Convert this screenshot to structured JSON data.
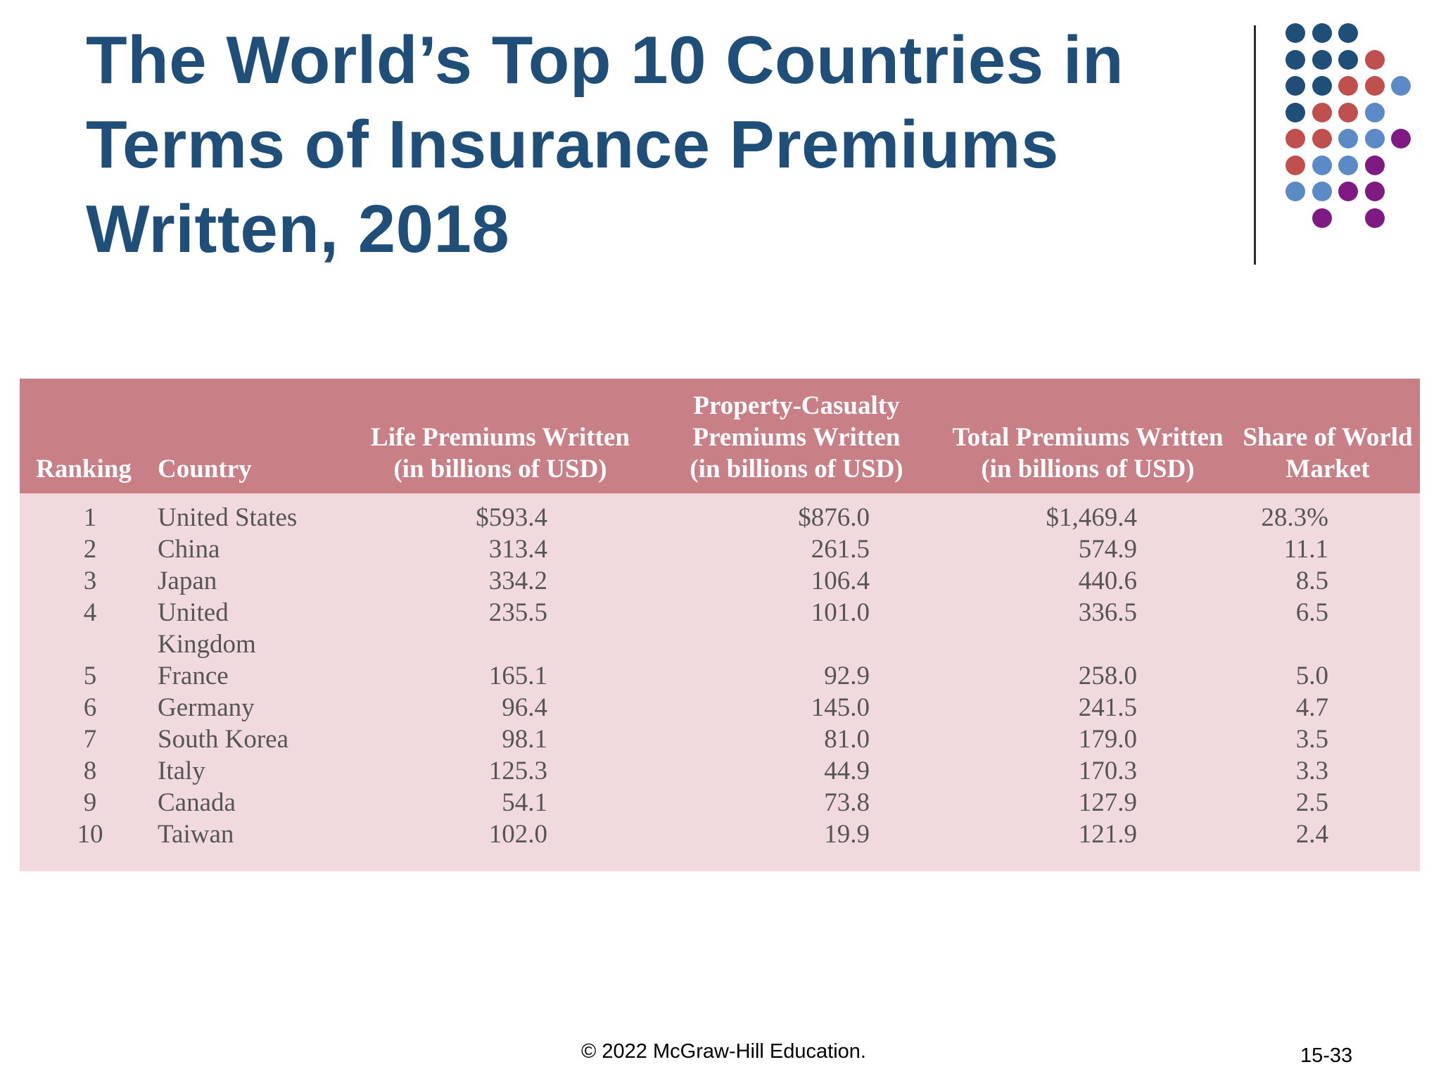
{
  "slide": {
    "title_lines": [
      "The World’s Top 10 Countries in",
      "Terms of Insurance Premiums",
      "Written, 2018"
    ]
  },
  "decoration": {
    "colors": {
      "navy": "#1f4e79",
      "red": "#c0504d",
      "blue": "#5b8ac6",
      "purple": "#7f1a83"
    }
  },
  "table": {
    "colors": {
      "header_bg": "#c87f86",
      "body_bg": "#f1dadd"
    },
    "headers": {
      "ranking": "Ranking",
      "country": "Country",
      "life": [
        "Life Premiums Written",
        "(in billions of USD)"
      ],
      "pc": [
        "Property-Casualty",
        "Premiums Written",
        "(in billions of USD)"
      ],
      "total": [
        "Total Premiums Written",
        "(in billions of USD)"
      ],
      "share": [
        "Share of World",
        "Market"
      ]
    },
    "rows": [
      {
        "rank": "1",
        "country": "United States",
        "life": "$593.4",
        "pc": "$876.0",
        "total": "$1,469.4",
        "share": "28.3%"
      },
      {
        "rank": "2",
        "country": "China",
        "life": "313.4",
        "pc": "261.5",
        "total": "574.9",
        "share": "11.1"
      },
      {
        "rank": "3",
        "country": "Japan",
        "life": "334.2",
        "pc": "106.4",
        "total": "440.6",
        "share": "8.5"
      },
      {
        "rank": "4",
        "country": "United\nKingdom",
        "life": "235.5",
        "pc": "101.0",
        "total": "336.5",
        "share": "6.5"
      },
      {
        "rank": "5",
        "country": "France",
        "life": "165.1",
        "pc": "92.9",
        "total": "258.0",
        "share": "5.0"
      },
      {
        "rank": "6",
        "country": "Germany",
        "life": "96.4",
        "pc": "145.0",
        "total": "241.5",
        "share": "4.7"
      },
      {
        "rank": "7",
        "country": "South Korea",
        "life": "98.1",
        "pc": "81.0",
        "total": "179.0",
        "share": "3.5"
      },
      {
        "rank": "8",
        "country": "Italy",
        "life": "125.3",
        "pc": "44.9",
        "total": "170.3",
        "share": "3.3"
      },
      {
        "rank": "9",
        "country": "Canada",
        "life": "54.1",
        "pc": "73.8",
        "total": "127.9",
        "share": "2.5"
      },
      {
        "rank": "10",
        "country": "Taiwan",
        "life": "102.0",
        "pc": "19.9",
        "total": "121.9",
        "share": "2.4"
      }
    ]
  },
  "footer": {
    "copyright": "© 2022 McGraw-Hill Education.",
    "page": "15-33"
  }
}
